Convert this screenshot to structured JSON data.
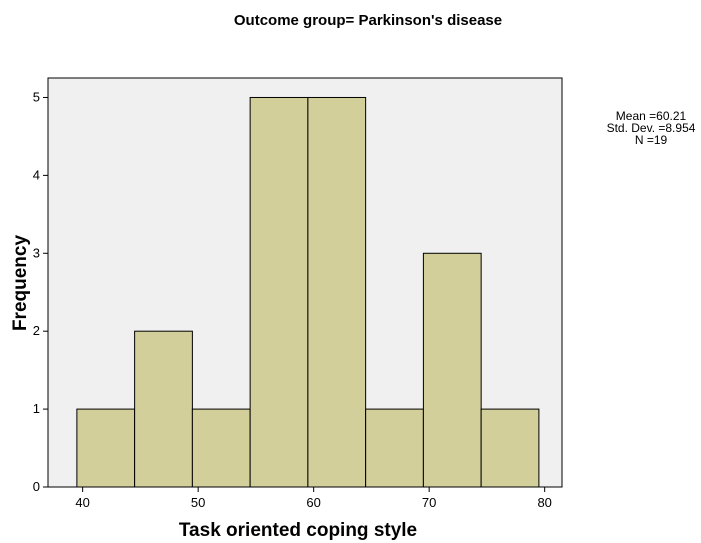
{
  "chart_data": {
    "type": "bar",
    "title": "Outcome group= Parkinson's disease",
    "xlabel": "Task oriented coping style",
    "ylabel": "Frequency",
    "bin_width": 5,
    "bins": [
      {
        "start": 39.5,
        "end": 44.5,
        "value": 1
      },
      {
        "start": 44.5,
        "end": 49.5,
        "value": 2
      },
      {
        "start": 49.5,
        "end": 54.5,
        "value": 1
      },
      {
        "start": 54.5,
        "end": 59.5,
        "value": 5
      },
      {
        "start": 59.5,
        "end": 64.5,
        "value": 5
      },
      {
        "start": 64.5,
        "end": 69.5,
        "value": 1
      },
      {
        "start": 69.5,
        "end": 74.5,
        "value": 3
      },
      {
        "start": 74.5,
        "end": 79.5,
        "value": 1
      }
    ],
    "xticks": [
      40,
      50,
      60,
      70,
      80
    ],
    "yticks": [
      0,
      1,
      2,
      3,
      4,
      5
    ],
    "xlim": [
      37,
      81.5
    ],
    "ylim": [
      0,
      5.25
    ],
    "stats": {
      "mean": "Mean =60.21",
      "std": "Std. Dev. =8.954",
      "n": "N =19"
    },
    "colors": {
      "bar_fill": "#d3cf9b",
      "bar_stroke": "#000000",
      "plot_background": "#f0f0f0"
    },
    "grid": false
  }
}
